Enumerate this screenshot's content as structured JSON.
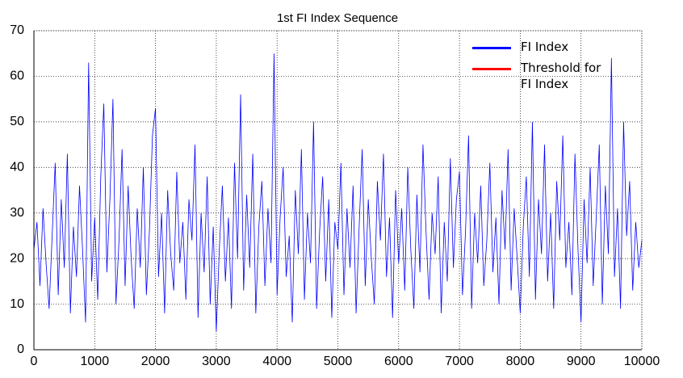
{
  "chart_data": {
    "type": "line",
    "title": "1st FI Index Sequence",
    "xlim": [
      0,
      10000
    ],
    "xticks": [
      0,
      1000,
      2000,
      3000,
      4000,
      5000,
      6000,
      7000,
      8000,
      9000,
      10000
    ],
    "ylim": [
      0,
      70
    ],
    "yticks": [
      0,
      10,
      20,
      30,
      40,
      50,
      60,
      70
    ],
    "grid": true,
    "legend": "upper right",
    "series": [
      {
        "name": "FI Index",
        "color": "#0000ff",
        "x": [
          0,
          50,
          100,
          150,
          200,
          250,
          300,
          350,
          400,
          450,
          500,
          550,
          600,
          650,
          700,
          750,
          800,
          850,
          900,
          950,
          1000,
          1050,
          1100,
          1150,
          1200,
          1250,
          1300,
          1350,
          1400,
          1450,
          1500,
          1550,
          1600,
          1650,
          1700,
          1750,
          1800,
          1850,
          1900,
          1950,
          2000,
          2050,
          2100,
          2150,
          2200,
          2250,
          2300,
          2350,
          2400,
          2450,
          2500,
          2550,
          2600,
          2650,
          2700,
          2750,
          2800,
          2850,
          2900,
          2950,
          3000,
          3050,
          3100,
          3150,
          3200,
          3250,
          3300,
          3350,
          3400,
          3450,
          3500,
          3550,
          3600,
          3650,
          3700,
          3750,
          3800,
          3850,
          3900,
          3950,
          4000,
          4050,
          4100,
          4150,
          4200,
          4250,
          4300,
          4350,
          4400,
          4450,
          4500,
          4550,
          4600,
          4650,
          4700,
          4750,
          4800,
          4850,
          4900,
          4950,
          5000,
          5050,
          5100,
          5150,
          5200,
          5250,
          5300,
          5350,
          5400,
          5450,
          5500,
          5550,
          5600,
          5650,
          5700,
          5750,
          5800,
          5850,
          5900,
          5950,
          6000,
          6050,
          6100,
          6150,
          6200,
          6250,
          6300,
          6350,
          6400,
          6450,
          6500,
          6550,
          6600,
          6650,
          6700,
          6750,
          6800,
          6850,
          6900,
          6950,
          7000,
          7050,
          7100,
          7150,
          7200,
          7250,
          7300,
          7350,
          7400,
          7450,
          7500,
          7550,
          7600,
          7650,
          7700,
          7750,
          7800,
          7850,
          7900,
          7950,
          8000,
          8050,
          8100,
          8150,
          8200,
          8250,
          8300,
          8350,
          8400,
          8450,
          8500,
          8550,
          8600,
          8650,
          8700,
          8750,
          8800,
          8850,
          8900,
          8950,
          9000,
          9050,
          9100,
          9150,
          9200,
          9250,
          9300,
          9350,
          9400,
          9450,
          9500,
          9550,
          9600,
          9650,
          9700,
          9750,
          9800,
          9850,
          9900,
          9950,
          10000
        ],
        "values": [
          22,
          28,
          14,
          31,
          19,
          9,
          25,
          41,
          12,
          33,
          18,
          43,
          8,
          27,
          16,
          36,
          22,
          6,
          63,
          15,
          29,
          11,
          38,
          54,
          17,
          33,
          55,
          10,
          24,
          44,
          14,
          36,
          20,
          9,
          31,
          18,
          40,
          12,
          26,
          47,
          53,
          16,
          30,
          8,
          35,
          21,
          13,
          39,
          19,
          28,
          11,
          33,
          24,
          45,
          7,
          30,
          17,
          38,
          10,
          27,
          4,
          22,
          36,
          15,
          29,
          9,
          41,
          20,
          56,
          13,
          34,
          18,
          43,
          8,
          27,
          37,
          14,
          31,
          19,
          65,
          12,
          29,
          40,
          16,
          25,
          6,
          35,
          21,
          44,
          11,
          30,
          19,
          50,
          9,
          26,
          38,
          15,
          33,
          7,
          28,
          22,
          41,
          12,
          31,
          18,
          36,
          8,
          27,
          44,
          14,
          33,
          20,
          10,
          37,
          24,
          43,
          16,
          29,
          7,
          35,
          19,
          31,
          13,
          40,
          22,
          9,
          34,
          17,
          45,
          26,
          11,
          30,
          21,
          38,
          8,
          28,
          15,
          42,
          18,
          33,
          39,
          12,
          26,
          47,
          9,
          30,
          19,
          36,
          14,
          24,
          41,
          17,
          29,
          10,
          35,
          22,
          44,
          13,
          31,
          20,
          8,
          27,
          38,
          16,
          50,
          11,
          33,
          21,
          45,
          15,
          30,
          9,
          37,
          24,
          47,
          18,
          28,
          12,
          43,
          22,
          6,
          33,
          19,
          40,
          14,
          29,
          45,
          10,
          36,
          21,
          64,
          16,
          31,
          9,
          50,
          25,
          37,
          13,
          28,
          18,
          24
        ]
      },
      {
        "name": "Threshold for FI Index",
        "color": "#ff0000",
        "x": [],
        "values": []
      }
    ]
  }
}
